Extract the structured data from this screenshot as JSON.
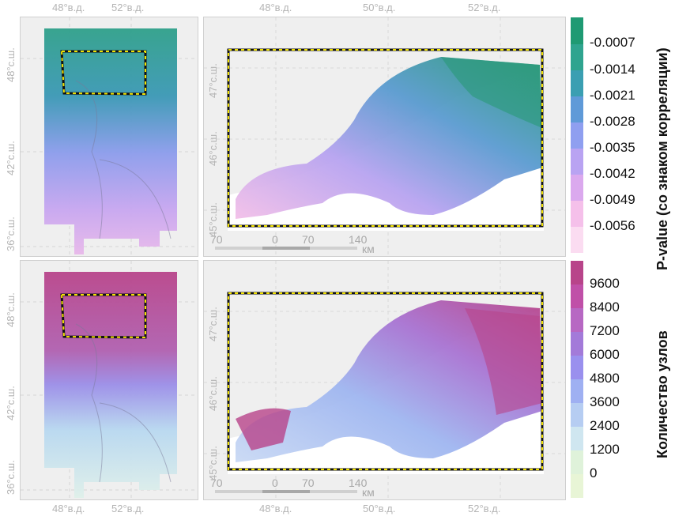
{
  "top_row": {
    "overview": {
      "x_ticks": [
        "48°в.д.",
        "52°в.д."
      ],
      "y_ticks": [
        "48°с.ш.",
        "42°с.ш.",
        "36°с.ш."
      ]
    },
    "detail": {
      "x_ticks": [
        "48°в.д.",
        "50°в.д.",
        "52°в.д."
      ],
      "y_ticks": [
        "47°с.ш.",
        "46°с.ш.",
        "45°с.ш."
      ],
      "scale_bar": [
        "70",
        "0",
        "70",
        "140",
        "км"
      ]
    },
    "legend": {
      "title": "P-value (со знаком корреляции)",
      "ticks": [
        "-0.0007",
        "-0.0014",
        "-0.0021",
        "-0.0028",
        "-0.0035",
        "-0.0042",
        "-0.0049",
        "-0.0056"
      ],
      "colors": [
        "#1f9a73",
        "#2fa48f",
        "#3b9fb2",
        "#5f9ad8",
        "#8f9ff0",
        "#b9a3f2",
        "#dba9ee",
        "#f5c0ea",
        "#fbdcf1"
      ]
    }
  },
  "bottom_row": {
    "overview": {
      "x_ticks": [
        "48°в.д.",
        "52°в.д."
      ],
      "y_ticks": [
        "48°с.ш.",
        "42°с.ш.",
        "36°с.ш."
      ]
    },
    "detail": {
      "x_ticks": [
        "48°в.д.",
        "50°в.д.",
        "52°в.д."
      ],
      "y_ticks": [
        "47°с.ш.",
        "46°с.ш.",
        "45°с.ш."
      ],
      "scale_bar": [
        "70",
        "0",
        "70",
        "140",
        "км"
      ]
    },
    "legend": {
      "title": "Количество узлов",
      "ticks": [
        "9600",
        "8400",
        "7200",
        "6000",
        "4800",
        "3600",
        "2400",
        "1200",
        "0"
      ],
      "colors": [
        "#b8448a",
        "#c050a8",
        "#b768c3",
        "#a37ad9",
        "#9a90ee",
        "#9fb0f2",
        "#b6cdf2",
        "#cfe6f0",
        "#dff2da",
        "#e8f5d6"
      ]
    }
  }
}
